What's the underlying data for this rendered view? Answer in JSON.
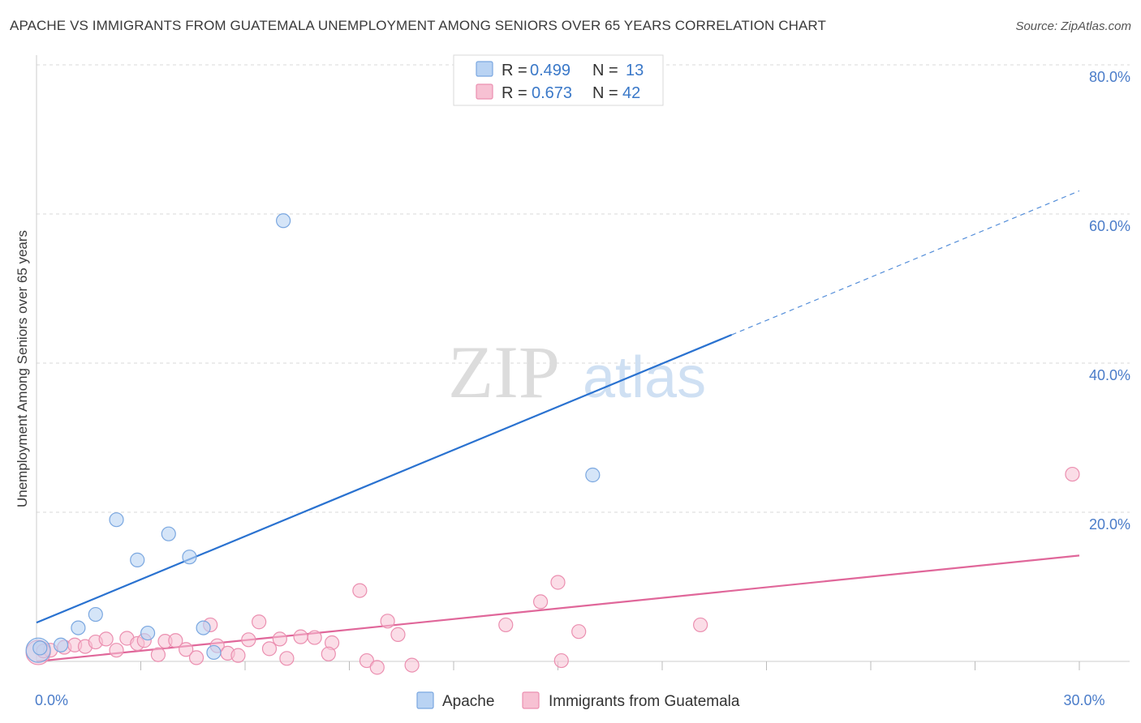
{
  "header": {
    "title": "APACHE VS IMMIGRANTS FROM GUATEMALA UNEMPLOYMENT AMONG SENIORS OVER 65 YEARS CORRELATION CHART",
    "source": "Source: ZipAtlas.com"
  },
  "watermark": {
    "zip": "ZIP",
    "atlas": "atlas"
  },
  "legend": {
    "r_label": "R =",
    "n_label": "N =",
    "apache": {
      "r": "0.499",
      "n": "13"
    },
    "guatemala": {
      "r": "0.673",
      "n": "42"
    }
  },
  "colors": {
    "apache_fill": "#b9d3f3",
    "apache_stroke": "#7aa7e0",
    "apache_line": "#2a72d0",
    "guatemala_fill": "#f7c1d3",
    "guatemala_stroke": "#eb8fb0",
    "guatemala_line": "#e0679a",
    "grid": "#d8d8d8",
    "tick_text": "#4a7cc9"
  },
  "chart_data": {
    "type": "scatter",
    "title": "APACHE VS IMMIGRANTS FROM GUATEMALA UNEMPLOYMENT AMONG SENIORS OVER 65 YEARS CORRELATION CHART",
    "xlabel": "",
    "ylabel": "Unemployment Among Seniors over 65 years",
    "xlim": [
      0,
      30
    ],
    "ylim": [
      0,
      80
    ],
    "x_tick_labels": [
      {
        "value": 0,
        "label": "0.0%"
      },
      {
        "value": 30,
        "label": "30.0%"
      }
    ],
    "y_tick_labels": [
      {
        "value": 20,
        "label": "20.0%"
      },
      {
        "value": 40,
        "label": "40.0%"
      },
      {
        "value": 60,
        "label": "60.0%"
      },
      {
        "value": 80,
        "label": "80.0%"
      }
    ],
    "grid": true,
    "legend_position": "top-center",
    "series": [
      {
        "name": "Apache",
        "points": [
          [
            0.1,
            1.8
          ],
          [
            0.7,
            2.2
          ],
          [
            1.2,
            4.5
          ],
          [
            1.7,
            6.3
          ],
          [
            2.3,
            19.0
          ],
          [
            2.9,
            13.6
          ],
          [
            3.2,
            3.8
          ],
          [
            3.8,
            17.1
          ],
          [
            4.4,
            14.0
          ],
          [
            4.8,
            4.5
          ],
          [
            5.1,
            1.2
          ],
          [
            7.1,
            59.1
          ],
          [
            16.0,
            25.0
          ]
        ],
        "big_point": [
          0.05,
          1.5
        ],
        "trend": {
          "x_start": 0,
          "y_start": 5.2,
          "x_solid_end": 20.0,
          "y_solid_end": 43.8,
          "x_dash_end": 30.0,
          "y_dash_end": 63.1
        }
      },
      {
        "name": "Immigrants from Guatemala",
        "points": [
          [
            0.4,
            1.5
          ],
          [
            0.8,
            1.9
          ],
          [
            1.1,
            2.2
          ],
          [
            1.4,
            2.0
          ],
          [
            1.7,
            2.6
          ],
          [
            2.0,
            3.0
          ],
          [
            2.3,
            1.5
          ],
          [
            2.6,
            3.1
          ],
          [
            2.9,
            2.4
          ],
          [
            3.1,
            2.8
          ],
          [
            3.5,
            0.9
          ],
          [
            3.7,
            2.7
          ],
          [
            4.0,
            2.8
          ],
          [
            4.3,
            1.6
          ],
          [
            4.6,
            0.5
          ],
          [
            5.0,
            4.9
          ],
          [
            5.2,
            2.1
          ],
          [
            5.5,
            1.1
          ],
          [
            5.8,
            0.8
          ],
          [
            6.1,
            2.9
          ],
          [
            6.4,
            5.3
          ],
          [
            6.7,
            1.7
          ],
          [
            7.0,
            3.0
          ],
          [
            7.2,
            0.4
          ],
          [
            7.6,
            3.3
          ],
          [
            8.0,
            3.2
          ],
          [
            8.5,
            2.5
          ],
          [
            8.4,
            1.0
          ],
          [
            9.3,
            9.5
          ],
          [
            9.5,
            0.1
          ],
          [
            9.8,
            -0.8
          ],
          [
            10.1,
            5.4
          ],
          [
            10.4,
            3.6
          ],
          [
            10.8,
            -0.5
          ],
          [
            13.5,
            4.9
          ],
          [
            14.5,
            8.0
          ],
          [
            15.0,
            10.6
          ],
          [
            15.6,
            4.0
          ],
          [
            15.1,
            0.1
          ],
          [
            19.1,
            4.9
          ],
          [
            29.8,
            25.1
          ],
          [
            0.2,
            1.4
          ]
        ],
        "big_point": [
          0.05,
          1.2
        ],
        "trend": {
          "x_start": 0,
          "y_start": 0.0,
          "x_end": 30.0,
          "y_end": 14.2
        }
      }
    ]
  },
  "bottom_legend": {
    "apache": "Apache",
    "guatemala": "Immigrants from Guatemala"
  }
}
